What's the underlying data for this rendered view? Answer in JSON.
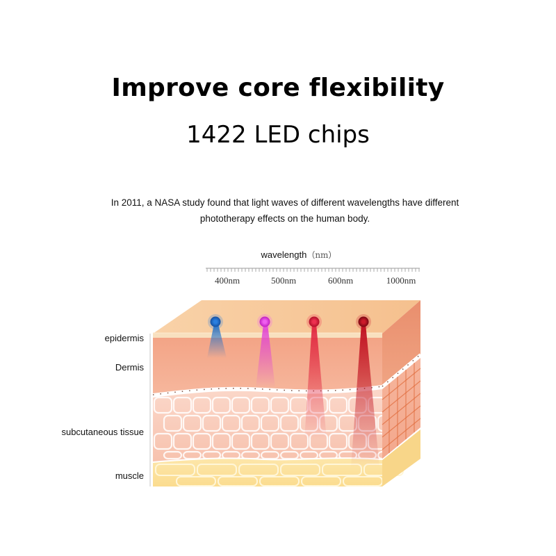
{
  "header": {
    "title": "Improve core flexibility",
    "subtitle": "1422 LED chips"
  },
  "description": {
    "line1": "In 2011, a NASA study found that light waves of different wavelengths have different",
    "line2": "phototherapy effects on the human body."
  },
  "wavelength_axis": {
    "label": "wavelength",
    "unit": "（nm）",
    "ticks": [
      "400nm",
      "500nm",
      "600nm",
      "1000nm"
    ]
  },
  "layers": {
    "epidermis": "epidermis",
    "dermis": "Dermis",
    "subcutaneous": "subcutaneous tissue",
    "muscle": "muscle"
  },
  "light_colors": {
    "blue": "#1f6fc9",
    "purple": "#e040d8",
    "red": "#e0203c",
    "deep_red": "#b01020"
  }
}
